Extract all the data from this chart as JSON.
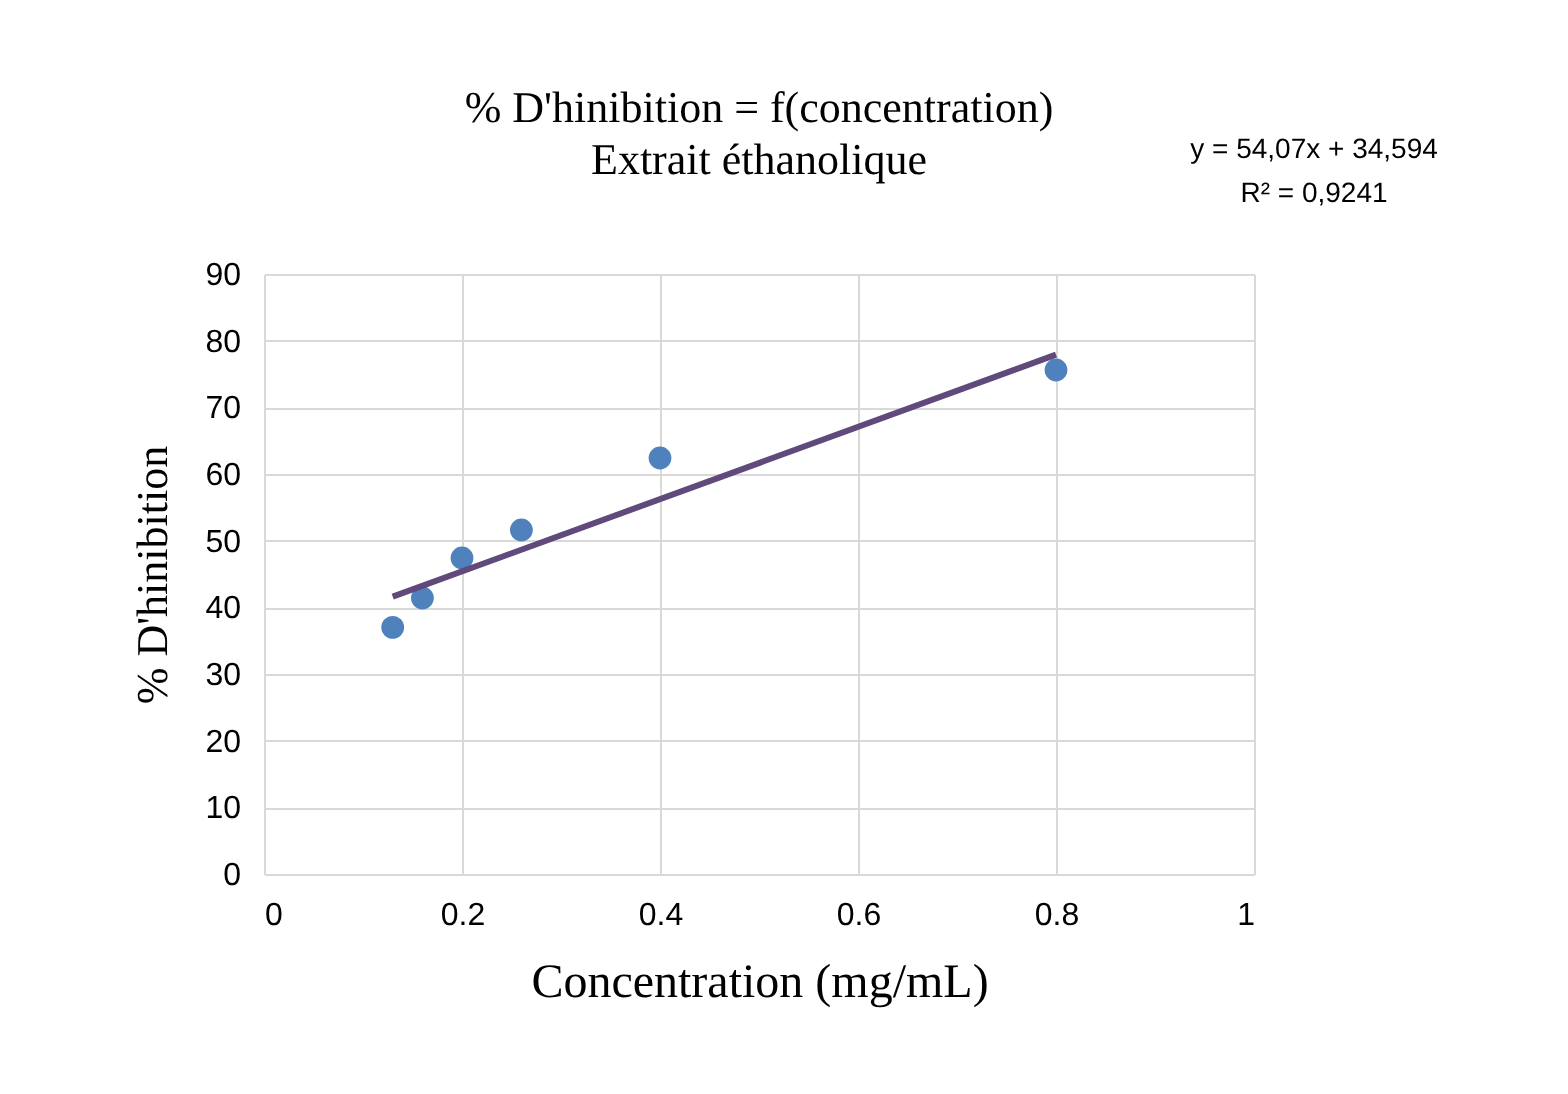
{
  "chart_data": {
    "type": "scatter",
    "title": "% D'hinibition = f(concentration)",
    "subtitle": "Extrait éthanolique",
    "xlabel": "Concentration (mg/mL)",
    "ylabel": "% D'hinibition",
    "annotations": [
      "y = 54,07x + 34,594",
      "R² = 0,9241"
    ],
    "x": [
      0.13,
      0.16,
      0.2,
      0.26,
      0.4,
      0.8
    ],
    "series": [
      {
        "color": "#4f81bd",
        "marker": "circle",
        "values": [
          37,
          41.4,
          47.4,
          51.6,
          62.4,
          75.6
        ]
      },
      {
        "type": "line",
        "color": "#604a7b",
        "x": [
          0.13,
          0.8
        ],
        "values": [
          41.6,
          77.9
        ]
      }
    ],
    "xlim": [
      0,
      1
    ],
    "xticks": [
      0,
      0.2,
      0.4,
      0.6,
      0.8,
      1
    ],
    "ylim": [
      0,
      90
    ],
    "yticks": [
      0,
      10,
      20,
      30,
      40,
      50,
      60,
      70,
      80,
      90
    ],
    "grid": true,
    "line_style": "solid"
  }
}
